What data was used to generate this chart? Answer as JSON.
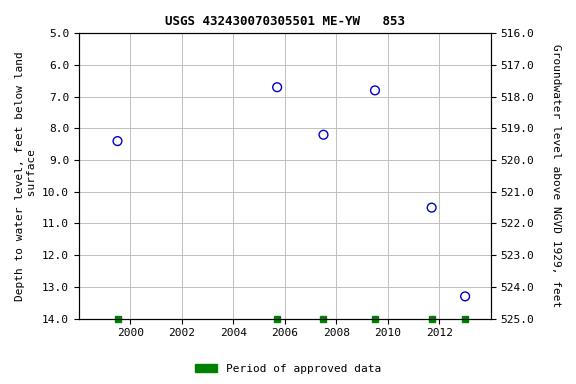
{
  "title": "USGS 432430070305501 ME-YW   853",
  "data_points": [
    {
      "year": 1999.5,
      "depth": 8.4
    },
    {
      "year": 2005.7,
      "depth": 6.7
    },
    {
      "year": 2007.5,
      "depth": 8.2
    },
    {
      "year": 2009.5,
      "depth": 6.8
    },
    {
      "year": 2011.7,
      "depth": 10.5
    },
    {
      "year": 2013.0,
      "depth": 13.3
    }
  ],
  "green_ticks": [
    1999.5,
    2005.7,
    2007.5,
    2009.5,
    2011.7,
    2013.0
  ],
  "left_ylabel": "Depth to water level, feet below land\n surface",
  "right_ylabel": "Groundwater level above NGVD 1929, feet",
  "ylim_left": [
    5.0,
    14.0
  ],
  "ylim_right": [
    525.0,
    516.0
  ],
  "xlim": [
    1998,
    2014
  ],
  "xticks": [
    2000,
    2002,
    2004,
    2006,
    2008,
    2010,
    2012
  ],
  "left_yticks": [
    5.0,
    6.0,
    7.0,
    8.0,
    9.0,
    10.0,
    11.0,
    12.0,
    13.0,
    14.0
  ],
  "right_yticks": [
    525.0,
    524.0,
    523.0,
    522.0,
    521.0,
    520.0,
    519.0,
    518.0,
    517.0,
    516.0
  ],
  "point_color": "#0000cc",
  "green_color": "#008000",
  "grid_color": "#c0c0c0",
  "legend_label": "Period of approved data",
  "bg_color": "#ffffff"
}
